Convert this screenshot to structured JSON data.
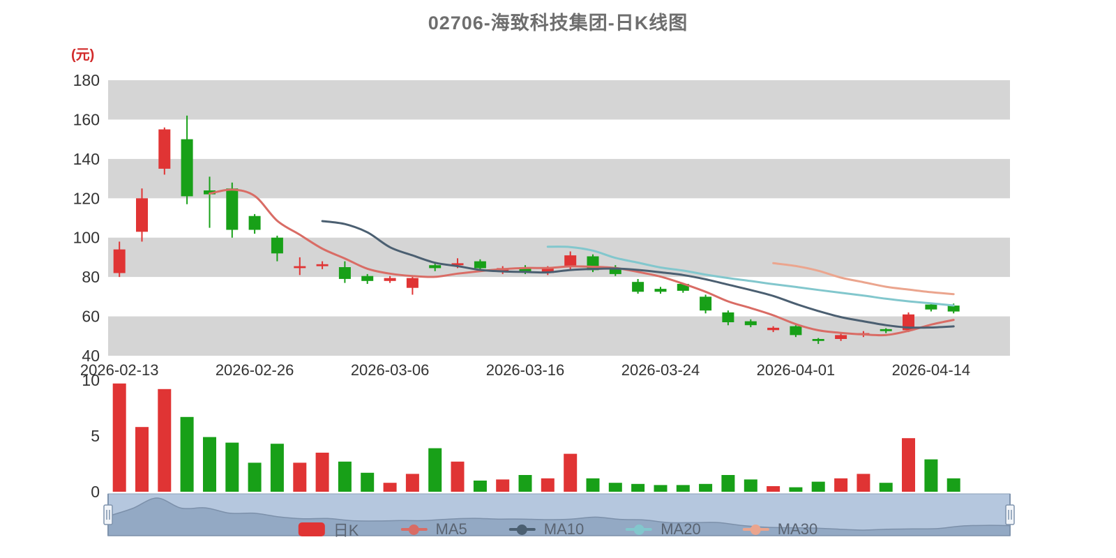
{
  "title": "02706-海致科技集团-日K线图",
  "unit": "(元)",
  "legend": {
    "items": [
      {
        "key": "daily-k",
        "label": "日K",
        "color": "#e03434",
        "icon": "candlestick"
      },
      {
        "key": "ma5",
        "label": "MA5",
        "color": "#d96c65",
        "icon": "line"
      },
      {
        "key": "ma10",
        "label": "MA10",
        "color": "#4b5f71",
        "icon": "line"
      },
      {
        "key": "ma20",
        "label": "MA20",
        "color": "#82c7cd",
        "icon": "line"
      },
      {
        "key": "ma30",
        "label": "MA30",
        "color": "#eba58e",
        "icon": "line"
      }
    ]
  },
  "chart_data": {
    "type": "candlestick",
    "title": "02706-海致科技集团-日K线图",
    "ylabel": "(元)",
    "grid": "horizontal-stripes",
    "legend_position": "bottom",
    "price_axis": {
      "min": 40,
      "max": 180,
      "ticks": [
        180,
        160,
        140,
        120,
        100,
        80,
        60,
        40
      ]
    },
    "volume_axis": {
      "min": 0,
      "max": 10,
      "ticks": [
        10,
        5,
        0
      ]
    },
    "x_labels": [
      {
        "index": 0,
        "label": "2026-02-13"
      },
      {
        "index": 6,
        "label": "2026-02-26"
      },
      {
        "index": 12,
        "label": "2026-03-06"
      },
      {
        "index": 18,
        "label": "2026-03-16"
      },
      {
        "index": 24,
        "label": "2026-03-24"
      },
      {
        "index": 30,
        "label": "2026-04-01"
      },
      {
        "index": 36,
        "label": "2026-04-14"
      }
    ],
    "candle_format": [
      "open",
      "close",
      "low",
      "high"
    ],
    "candles": [
      [
        82,
        94,
        80,
        98
      ],
      [
        103,
        120,
        98,
        125
      ],
      [
        135,
        155,
        132,
        156
      ],
      [
        150,
        121,
        117,
        162
      ],
      [
        124,
        122,
        105,
        131
      ],
      [
        125,
        104,
        100,
        128
      ],
      [
        111,
        104,
        102,
        112
      ],
      [
        100,
        92,
        88,
        101
      ],
      [
        84.5,
        85.5,
        81,
        90
      ],
      [
        85.5,
        86.5,
        84,
        88
      ],
      [
        85,
        79,
        77,
        88
      ],
      [
        80.5,
        78,
        76.5,
        81.5
      ],
      [
        78,
        79.5,
        77,
        80.5
      ],
      [
        74.5,
        79.5,
        71,
        80
      ],
      [
        86,
        84.5,
        83,
        87
      ],
      [
        86,
        87,
        84.5,
        89.5
      ],
      [
        88,
        84.5,
        83.5,
        89
      ],
      [
        82.5,
        84.5,
        81.5,
        85.5
      ],
      [
        85,
        82.5,
        81.5,
        86
      ],
      [
        82,
        84.5,
        81,
        85.5
      ],
      [
        85,
        91,
        84,
        93
      ],
      [
        90.5,
        83.5,
        82.5,
        91.5
      ],
      [
        84.5,
        81.5,
        80.5,
        86
      ],
      [
        77.5,
        72.5,
        71.5,
        79
      ],
      [
        74,
        72.5,
        71.5,
        75
      ],
      [
        76.5,
        73,
        72,
        77
      ],
      [
        70,
        63,
        61.5,
        71
      ],
      [
        62,
        57,
        55.5,
        63
      ],
      [
        57.5,
        55.5,
        54.5,
        58.5
      ],
      [
        53,
        54.2,
        52,
        55
      ],
      [
        55,
        50.5,
        49.5,
        55.5
      ],
      [
        48.5,
        47.5,
        46,
        49
      ],
      [
        48.5,
        50.5,
        47.5,
        51.5
      ],
      [
        50.5,
        51.5,
        49.5,
        52.5
      ],
      [
        53.5,
        52.5,
        51.5,
        54
      ],
      [
        53,
        61,
        52,
        62
      ],
      [
        66,
        63.5,
        62.5,
        67
      ],
      [
        65.5,
        62.5,
        61.5,
        66.5
      ]
    ],
    "volumes": [
      9.7,
      5.8,
      9.2,
      6.7,
      4.9,
      4.4,
      2.6,
      4.3,
      2.6,
      3.5,
      2.7,
      1.7,
      0.8,
      1.6,
      3.9,
      2.7,
      1.0,
      1.1,
      1.5,
      1.2,
      3.4,
      1.2,
      0.8,
      0.7,
      0.6,
      0.6,
      0.7,
      1.5,
      1.1,
      0.5,
      0.4,
      0.9,
      1.2,
      1.6,
      0.8,
      4.8,
      2.9,
      1.2
    ],
    "ma_periods": [
      5,
      10,
      20,
      30
    ],
    "colors": {
      "up": "#e03434",
      "down": "#18a018",
      "ma5": "#d96c65",
      "ma10": "#4b5f71",
      "ma20": "#82c7cd",
      "ma30": "#eba58e",
      "stripe": "#d5d5d5",
      "axis_text": "#333333",
      "title": "#6e6e6e",
      "unit": "#d22a2a",
      "navigator_bg": "#b5c7de",
      "navigator_area": "#93a9c4",
      "navigator_border": "#8ba0ba"
    }
  }
}
